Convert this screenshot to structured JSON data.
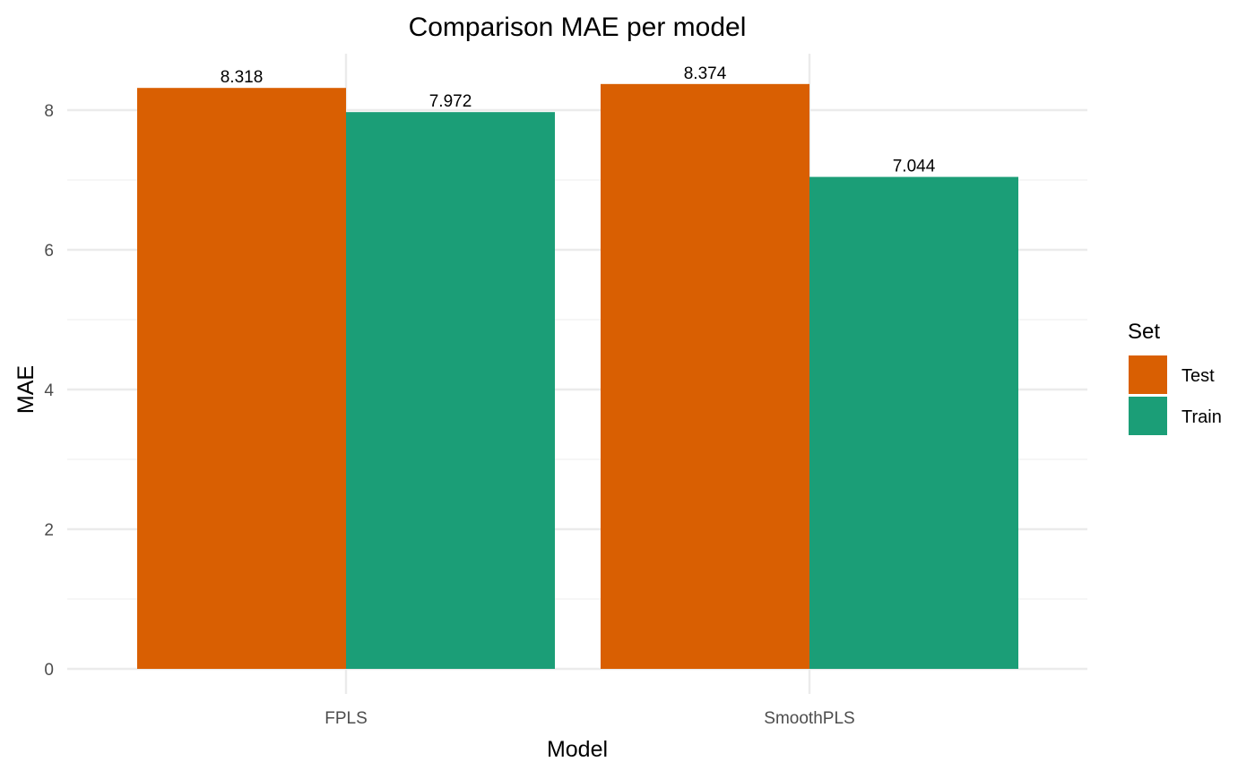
{
  "chart_data": {
    "type": "bar",
    "title": "Comparison MAE per model",
    "xlabel": "Model",
    "ylabel": "MAE",
    "categories": [
      "FPLS",
      "SmoothPLS"
    ],
    "series": [
      {
        "name": "Test",
        "color": "#D95F02",
        "values": [
          8.318,
          8.374
        ],
        "labels": [
          "8.318",
          "8.374"
        ]
      },
      {
        "name": "Train",
        "color": "#1B9E77",
        "values": [
          7.972,
          7.044
        ],
        "labels": [
          "7.972",
          "7.044"
        ]
      }
    ],
    "ylim": [
      0,
      8.8
    ],
    "yticks": [
      0,
      2,
      4,
      6,
      8
    ],
    "ytick_labels": [
      "0",
      "2",
      "4",
      "6",
      "8"
    ],
    "grid": true,
    "legend": {
      "title": "Set",
      "position": "right",
      "entries": [
        "Test",
        "Train"
      ]
    }
  }
}
